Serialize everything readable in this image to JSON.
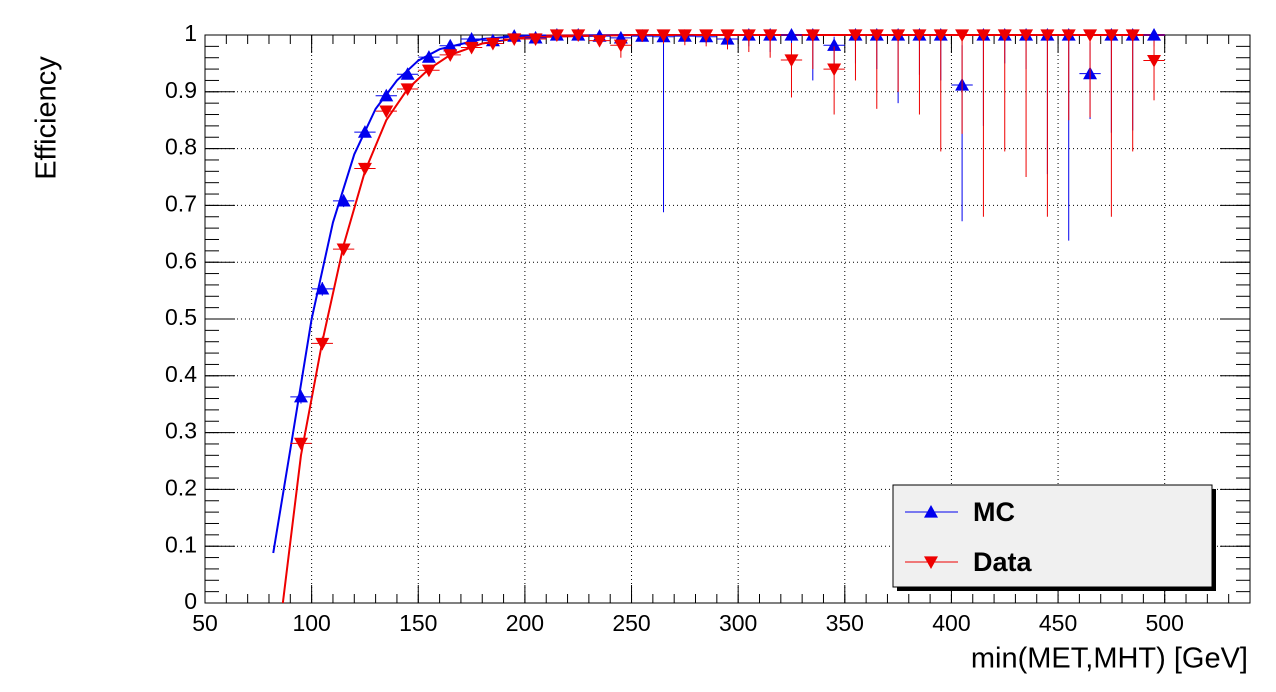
{
  "chart_data": {
    "type": "errorbar",
    "x_label": "min(MET,MHT) [GeV]",
    "y_label": "Efficiency",
    "xlim": [
      50,
      540
    ],
    "ylim": [
      0,
      1
    ],
    "xticks": [
      50,
      100,
      150,
      200,
      250,
      300,
      350,
      400,
      450,
      500
    ],
    "yticks": [
      0,
      0.1,
      0.2,
      0.3,
      0.4,
      0.5,
      0.6,
      0.7,
      0.8,
      0.9,
      1
    ],
    "grid": true,
    "legend": "lower right",
    "xerr": 5,
    "x": [
      95,
      105,
      115,
      125,
      135,
      145,
      155,
      165,
      175,
      185,
      195,
      205,
      215,
      225,
      235,
      245,
      255,
      265,
      275,
      285,
      295,
      305,
      315,
      325,
      335,
      345,
      355,
      365,
      375,
      385,
      395,
      405,
      415,
      425,
      435,
      445,
      455,
      465,
      475,
      485,
      495
    ],
    "series": [
      {
        "name": "MC",
        "color": "#0000ee",
        "marker": "triangle-up",
        "values": [
          0.363,
          0.553,
          0.708,
          0.829,
          0.893,
          0.931,
          0.961,
          0.981,
          0.993,
          0.99,
          0.998,
          0.995,
          1,
          1,
          0.998,
          0.995,
          0.998,
          0.997,
          0.998,
          0.997,
          0.993,
          1,
          1,
          1,
          1,
          0.982,
          1,
          1,
          1,
          1,
          1,
          0.912,
          1,
          1,
          1,
          1,
          1,
          0.932,
          1,
          1,
          1
        ],
        "errors_low": [
          0.012,
          0.012,
          0.011,
          0.009,
          0.008,
          0.007,
          0.006,
          0.005,
          0.004,
          0.005,
          0.003,
          0.005,
          0.004,
          0.004,
          0.006,
          0.008,
          0.01,
          0.309,
          0.01,
          0.012,
          0.018,
          0.02,
          0.03,
          0.04,
          0.08,
          0.04,
          0.05,
          0.06,
          0.12,
          0.07,
          0.08,
          0.24,
          0.16,
          0.05,
          0.06,
          0.245,
          0.362,
          0.08,
          0.172,
          0.168,
          0.02
        ],
        "errors_high": [
          0.012,
          0.012,
          0.011,
          0.009,
          0.008,
          0.007,
          0.006,
          0.005,
          0.004,
          0.005,
          0.002,
          0.004,
          0,
          0,
          0.002,
          0.004,
          0.002,
          0.003,
          0.002,
          0.003,
          0.006,
          0,
          0,
          0,
          0,
          0.015,
          0,
          0,
          0,
          0,
          0,
          0.07,
          0,
          0,
          0,
          0,
          0,
          0.055,
          0,
          0,
          0
        ]
      },
      {
        "name": "Data",
        "color": "#ee0000",
        "marker": "triangle-down",
        "values": [
          0.281,
          0.457,
          0.623,
          0.765,
          0.866,
          0.905,
          0.938,
          0.965,
          0.978,
          0.985,
          0.993,
          0.993,
          1,
          1,
          0.99,
          0.982,
          1,
          1,
          1,
          1,
          1,
          1,
          1,
          0.956,
          1,
          0.94,
          1,
          1,
          1,
          1,
          1,
          1,
          1,
          1,
          1,
          1,
          1,
          1,
          1,
          1,
          0.955
        ],
        "errors_low": [
          0.01,
          0.012,
          0.011,
          0.01,
          0.009,
          0.008,
          0.007,
          0.006,
          0.006,
          0.006,
          0.006,
          0.007,
          0.006,
          0.006,
          0.01,
          0.022,
          0.012,
          0.015,
          0.018,
          0.02,
          0.025,
          0.03,
          0.04,
          0.066,
          0.06,
          0.08,
          0.08,
          0.13,
          0.1,
          0.14,
          0.205,
          0.174,
          0.32,
          0.205,
          0.25,
          0.32,
          0.15,
          0.145,
          0.32,
          0.205,
          0.07
        ],
        "errors_high": [
          0.01,
          0.012,
          0.011,
          0.01,
          0.009,
          0.008,
          0.007,
          0.006,
          0.006,
          0.006,
          0.004,
          0.004,
          0,
          0,
          0.006,
          0.01,
          0,
          0,
          0,
          0,
          0,
          0,
          0,
          0.03,
          0,
          0.04,
          0,
          0,
          0,
          0,
          0,
          0,
          0,
          0,
          0,
          0,
          0,
          0,
          0,
          0,
          0.035
        ]
      }
    ],
    "fits": [
      {
        "color": "#0000ee",
        "x": [
          82,
          90,
          100,
          110,
          120,
          130,
          140,
          150,
          160,
          180,
          200,
          250,
          500
        ],
        "values": [
          0.088,
          0.27,
          0.5,
          0.67,
          0.79,
          0.87,
          0.92,
          0.955,
          0.975,
          0.993,
          0.999,
          1,
          1
        ]
      },
      {
        "color": "#ee0000",
        "x": [
          86.5,
          95,
          105,
          115,
          125,
          135,
          145,
          155,
          165,
          180,
          200,
          250,
          500
        ],
        "values": [
          0,
          0.26,
          0.46,
          0.63,
          0.76,
          0.85,
          0.905,
          0.94,
          0.965,
          0.985,
          0.996,
          1,
          1
        ]
      }
    ]
  }
}
